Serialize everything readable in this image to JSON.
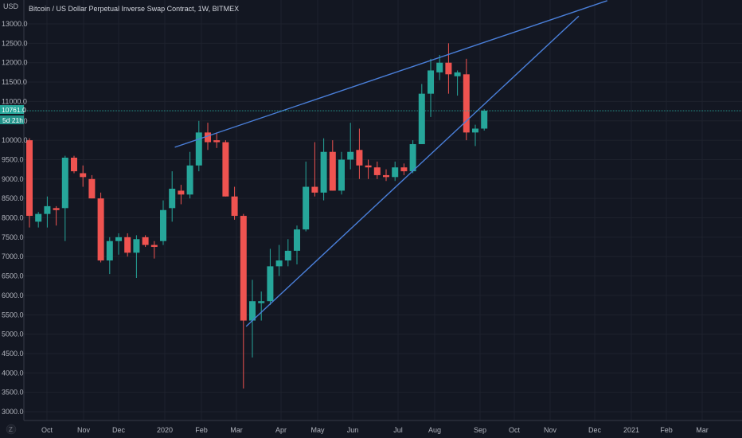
{
  "header": {
    "title": "Bitcoin / US Dollar Perpetual Inverse Swap Contract, 1W, BITMEX",
    "unit_label": "USD"
  },
  "price_axis": {
    "ticks": [
      "3000.0",
      "3500.0",
      "4000.0",
      "4500.0",
      "5000.0",
      "5500.0",
      "6000.0",
      "6500.0",
      "7000.0",
      "7500.0",
      "8000.0",
      "8500.0",
      "9000.0",
      "9500.0",
      "10000.0",
      "10500.0",
      "11000.0",
      "11500.0",
      "12000.0",
      "12500.0",
      "13000.0"
    ],
    "last_price_label": "10761.0",
    "countdown_label": "5d 21h"
  },
  "time_axis": {
    "labels": [
      "Oct",
      "Nov",
      "Dec",
      "2020",
      "Feb",
      "Mar",
      "Apr",
      "May",
      "Jun",
      "Jul",
      "Aug",
      "Sep",
      "Oct",
      "Nov",
      "Dec",
      "2021",
      "Feb",
      "Mar"
    ]
  },
  "footer": {
    "logo_text": "Z"
  },
  "colors": {
    "background": "#131722",
    "up": "#26a69a",
    "down": "#ef5350",
    "trendline": "#4a7fd9",
    "price_line": "#26a69a",
    "grid": "#1e222d"
  },
  "chart_data": {
    "type": "candlestick",
    "title": "Bitcoin / US Dollar Perpetual Inverse Swap Contract, 1W, BITMEX",
    "ylabel": "USD",
    "ylim": [
      2700,
      13600
    ],
    "last_price": 10761.0,
    "candles": [
      {
        "o": 10000,
        "h": 10050,
        "l": 7750,
        "c": 8050
      },
      {
        "o": 7900,
        "h": 8150,
        "l": 7750,
        "c": 8100
      },
      {
        "o": 8100,
        "h": 8550,
        "l": 7750,
        "c": 8300
      },
      {
        "o": 8250,
        "h": 8300,
        "l": 7800,
        "c": 8200
      },
      {
        "o": 8250,
        "h": 9600,
        "l": 7400,
        "c": 9550
      },
      {
        "o": 9550,
        "h": 9600,
        "l": 9150,
        "c": 9200
      },
      {
        "o": 9150,
        "h": 9350,
        "l": 8800,
        "c": 9050
      },
      {
        "o": 9000,
        "h": 9100,
        "l": 8500,
        "c": 8500
      },
      {
        "o": 8500,
        "h": 8650,
        "l": 6850,
        "c": 6900
      },
      {
        "o": 6900,
        "h": 7500,
        "l": 6550,
        "c": 7400
      },
      {
        "o": 7400,
        "h": 7600,
        "l": 7050,
        "c": 7500
      },
      {
        "o": 7500,
        "h": 7600,
        "l": 7000,
        "c": 7100
      },
      {
        "o": 7100,
        "h": 7550,
        "l": 6450,
        "c": 7450
      },
      {
        "o": 7500,
        "h": 7550,
        "l": 7250,
        "c": 7300
      },
      {
        "o": 7300,
        "h": 7400,
        "l": 6950,
        "c": 7250
      },
      {
        "o": 7400,
        "h": 8450,
        "l": 7300,
        "c": 8200
      },
      {
        "o": 8250,
        "h": 9200,
        "l": 7900,
        "c": 8750
      },
      {
        "o": 8700,
        "h": 8850,
        "l": 8350,
        "c": 8600
      },
      {
        "o": 8600,
        "h": 9700,
        "l": 8500,
        "c": 9350
      },
      {
        "o": 9350,
        "h": 10500,
        "l": 9200,
        "c": 10200
      },
      {
        "o": 10200,
        "h": 10450,
        "l": 9750,
        "c": 9950
      },
      {
        "o": 10000,
        "h": 10200,
        "l": 9800,
        "c": 9950
      },
      {
        "o": 9950,
        "h": 10000,
        "l": 8550,
        "c": 8550
      },
      {
        "o": 8550,
        "h": 8800,
        "l": 7950,
        "c": 8050
      },
      {
        "o": 8050,
        "h": 8100,
        "l": 3600,
        "c": 5350
      },
      {
        "o": 5350,
        "h": 6400,
        "l": 4400,
        "c": 5850
      },
      {
        "o": 5800,
        "h": 6100,
        "l": 5350,
        "c": 5850
      },
      {
        "o": 5850,
        "h": 7200,
        "l": 5750,
        "c": 6750
      },
      {
        "o": 6750,
        "h": 7300,
        "l": 6500,
        "c": 6900
      },
      {
        "o": 6900,
        "h": 7450,
        "l": 6750,
        "c": 7150
      },
      {
        "o": 7150,
        "h": 7800,
        "l": 6800,
        "c": 7700
      },
      {
        "o": 7700,
        "h": 9450,
        "l": 7650,
        "c": 8800
      },
      {
        "o": 8800,
        "h": 9950,
        "l": 8550,
        "c": 8650
      },
      {
        "o": 8650,
        "h": 10050,
        "l": 8450,
        "c": 9700
      },
      {
        "o": 9700,
        "h": 10000,
        "l": 8700,
        "c": 8700
      },
      {
        "o": 8700,
        "h": 9700,
        "l": 8600,
        "c": 9500
      },
      {
        "o": 9500,
        "h": 10450,
        "l": 9250,
        "c": 9700
      },
      {
        "o": 9750,
        "h": 10300,
        "l": 9000,
        "c": 9350
      },
      {
        "o": 9350,
        "h": 9500,
        "l": 9000,
        "c": 9300
      },
      {
        "o": 9300,
        "h": 9450,
        "l": 9000,
        "c": 9100
      },
      {
        "o": 9100,
        "h": 9250,
        "l": 8950,
        "c": 9050
      },
      {
        "o": 9050,
        "h": 9450,
        "l": 8950,
        "c": 9300
      },
      {
        "o": 9300,
        "h": 9400,
        "l": 9100,
        "c": 9200
      },
      {
        "o": 9200,
        "h": 10000,
        "l": 9150,
        "c": 9900
      },
      {
        "o": 9900,
        "h": 11450,
        "l": 9900,
        "c": 11200
      },
      {
        "o": 11200,
        "h": 12100,
        "l": 10600,
        "c": 11800
      },
      {
        "o": 11750,
        "h": 12200,
        "l": 11550,
        "c": 12000
      },
      {
        "o": 12000,
        "h": 12500,
        "l": 11200,
        "c": 11700
      },
      {
        "o": 11650,
        "h": 11800,
        "l": 11150,
        "c": 11750
      },
      {
        "o": 11700,
        "h": 12100,
        "l": 10000,
        "c": 10200
      },
      {
        "o": 10200,
        "h": 10400,
        "l": 9850,
        "c": 10300
      },
      {
        "o": 10300,
        "h": 10800,
        "l": 10250,
        "c": 10761
      }
    ],
    "trendlines": [
      {
        "from": {
          "candle": 16.3,
          "price": 9820
        },
        "to": {
          "candle": 64.8,
          "price": 13600
        }
      },
      {
        "from": {
          "candle": 24.3,
          "price": 5200
        },
        "to": {
          "candle": 61.6,
          "price": 13200
        }
      }
    ]
  }
}
